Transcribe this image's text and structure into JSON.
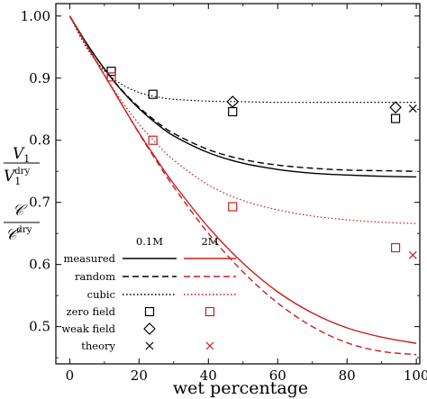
{
  "chart_data": {
    "type": "line",
    "xlabel": "wet percentage",
    "ylabel": {
      "top_num": "V",
      "top_num_sub": "1",
      "top_den": "V",
      "top_den_sub": "1",
      "top_den_sup": "dry",
      "bottom_num": "𝒞",
      "bottom_den": "𝒞",
      "bottom_den_sup": "dry"
    },
    "xlim": [
      -4,
      101
    ],
    "ylim": [
      0.44,
      1.02
    ],
    "xticks": [
      0,
      20,
      40,
      60,
      80,
      100
    ],
    "xtick_labels": [
      "0",
      "20",
      "40",
      "60",
      "80",
      "100"
    ],
    "yticks": [
      0.5,
      0.6,
      0.7,
      0.8,
      0.9,
      1.0
    ],
    "ytick_labels": [
      "0.5",
      "0.6",
      "0.7",
      "0.8",
      "0.9",
      "1.00"
    ],
    "colors": {
      "0.1M": "#000000",
      "2M": "#c8201e"
    },
    "legend": {
      "position": "bottom-left",
      "col_headers": [
        "0.1M",
        "2M"
      ],
      "rows": [
        "measured",
        "random",
        "cubic",
        "zero field",
        "weak field",
        "theory"
      ]
    },
    "series": [
      {
        "name": "measured",
        "group": "0.1M",
        "style": "solid",
        "x": [
          0,
          5,
          10,
          15,
          20,
          25,
          30,
          40,
          50,
          60,
          70,
          80,
          90,
          100
        ],
        "y": [
          1.0,
          0.955,
          0.915,
          0.88,
          0.851,
          0.827,
          0.807,
          0.78,
          0.763,
          0.753,
          0.747,
          0.744,
          0.742,
          0.741
        ]
      },
      {
        "name": "random",
        "group": "0.1M",
        "style": "dashed",
        "x": [
          0,
          5,
          10,
          15,
          20,
          25,
          30,
          40,
          50,
          60,
          70,
          80,
          90,
          100
        ],
        "y": [
          1.0,
          0.955,
          0.915,
          0.881,
          0.853,
          0.83,
          0.811,
          0.785,
          0.769,
          0.76,
          0.755,
          0.752,
          0.751,
          0.75
        ]
      },
      {
        "name": "cubic",
        "group": "0.1M",
        "style": "dotted",
        "x": [
          0,
          5,
          10,
          15,
          20,
          25,
          30,
          40,
          50,
          60,
          70,
          80,
          90,
          100
        ],
        "y": [
          1.0,
          0.948,
          0.912,
          0.89,
          0.877,
          0.87,
          0.866,
          0.863,
          0.862,
          0.861,
          0.861,
          0.861,
          0.861,
          0.861
        ]
      },
      {
        "name": "measured",
        "group": "2M",
        "style": "solid",
        "x": [
          0,
          5,
          10,
          15,
          20,
          25,
          30,
          40,
          50,
          60,
          70,
          80,
          90,
          100
        ],
        "y": [
          1.0,
          0.952,
          0.905,
          0.858,
          0.812,
          0.77,
          0.73,
          0.66,
          0.602,
          0.556,
          0.522,
          0.498,
          0.483,
          0.473
        ]
      },
      {
        "name": "random",
        "group": "2M",
        "style": "dashed",
        "x": [
          0,
          5,
          10,
          15,
          20,
          25,
          30,
          40,
          50,
          60,
          70,
          80,
          90,
          100
        ],
        "y": [
          1.0,
          0.952,
          0.905,
          0.858,
          0.811,
          0.767,
          0.725,
          0.65,
          0.588,
          0.538,
          0.5,
          0.474,
          0.46,
          0.455
        ]
      },
      {
        "name": "cubic",
        "group": "2M",
        "style": "dotted",
        "x": [
          0,
          5,
          10,
          15,
          20,
          25,
          30,
          40,
          50,
          60,
          70,
          80,
          90,
          100
        ],
        "y": [
          1.0,
          0.952,
          0.905,
          0.863,
          0.826,
          0.795,
          0.768,
          0.728,
          0.703,
          0.688,
          0.678,
          0.672,
          0.668,
          0.666
        ]
      }
    ],
    "markers": [
      {
        "name": "zero field",
        "group": "0.1M",
        "shape": "square",
        "x": [
          12,
          24,
          47,
          94
        ],
        "y": [
          0.911,
          0.874,
          0.846,
          0.835
        ]
      },
      {
        "name": "zero field",
        "group": "2M",
        "shape": "square",
        "x": [
          12,
          24,
          47,
          94
        ],
        "y": [
          0.902,
          0.8,
          0.693,
          0.627
        ]
      },
      {
        "name": "weak field",
        "group": "0.1M",
        "shape": "diamond",
        "x": [
          47,
          94
        ],
        "y": [
          0.862,
          0.853
        ]
      },
      {
        "name": "theory",
        "group": "0.1M",
        "shape": "cross",
        "x": [
          99
        ],
        "y": [
          0.851
        ]
      },
      {
        "name": "theory",
        "group": "2M",
        "shape": "cross",
        "x": [
          99
        ],
        "y": [
          0.615
        ]
      }
    ]
  }
}
